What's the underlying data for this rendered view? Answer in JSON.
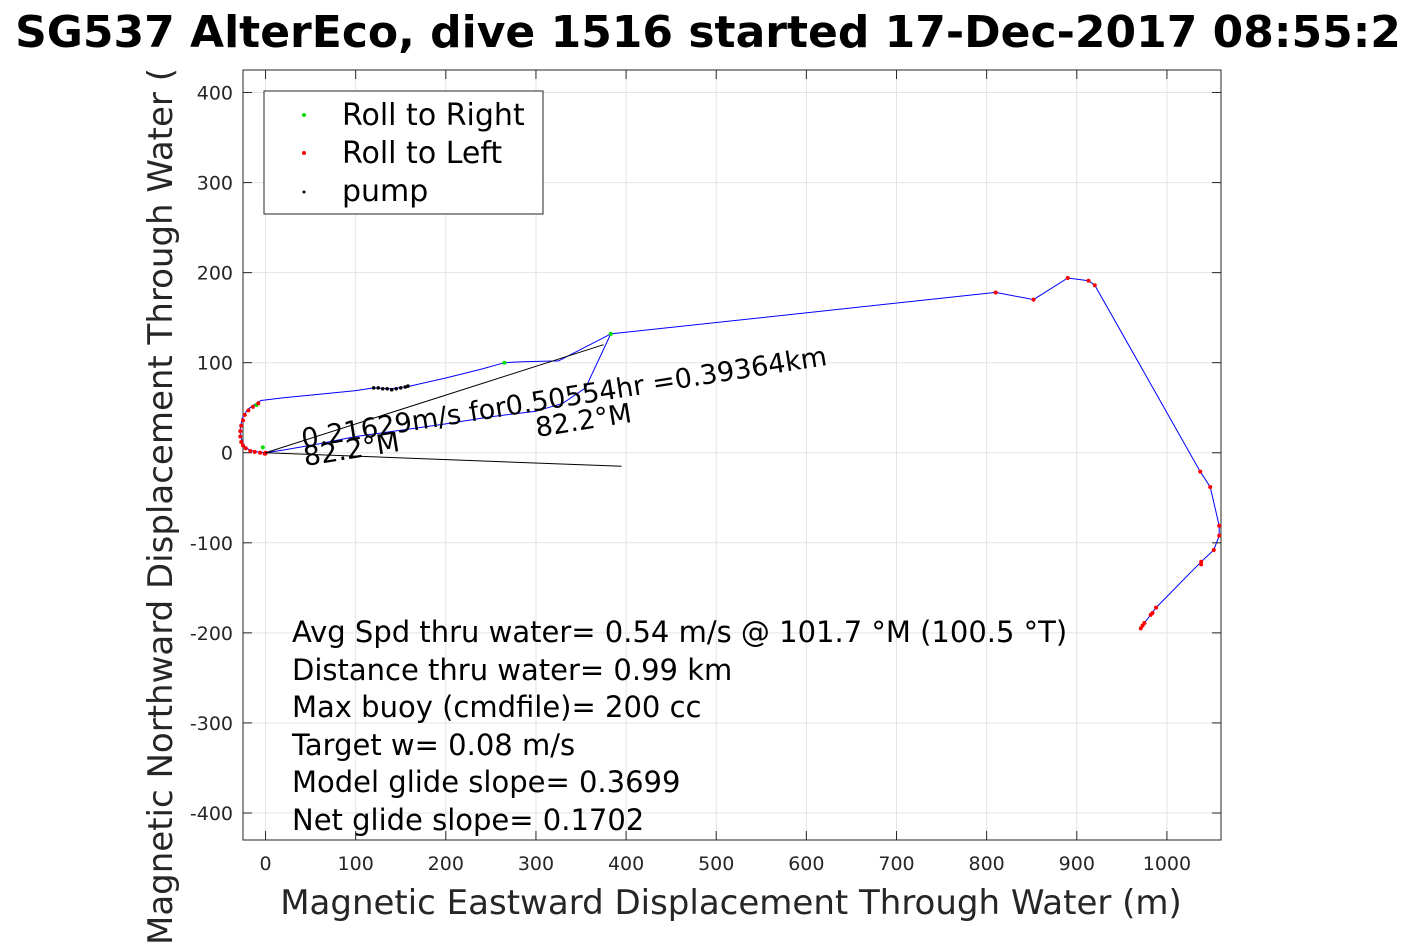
{
  "chart_data": {
    "type": "scatter",
    "title": "SG537 AlterEco, dive 1516 started 17-Dec-2017 08:55:2",
    "xlabel": "Magnetic Eastward Displacement Through Water (m)",
    "ylabel": "Magnetic Northward Displacement Through Water (",
    "xlim": [
      -25,
      1060
    ],
    "ylim": [
      -430,
      425
    ],
    "xticks": [
      0,
      100,
      200,
      300,
      400,
      500,
      600,
      700,
      800,
      900,
      1000
    ],
    "yticks": [
      -400,
      -300,
      -200,
      -100,
      0,
      100,
      200,
      300,
      400
    ],
    "grid": true,
    "legend_position": "top-left",
    "track_color": "#0000ff",
    "series": [
      {
        "name": "Roll to Right",
        "color": "#00dd00",
        "points": [
          [
            265,
            100
          ],
          [
            383,
            132
          ],
          [
            -10,
            53
          ],
          [
            -3,
            6
          ]
        ]
      },
      {
        "name": "Roll to Left",
        "color": "#ff0000",
        "points": [
          [
            -8,
            55
          ],
          [
            -14,
            51
          ],
          [
            -19,
            47
          ],
          [
            -23,
            42
          ],
          [
            -25,
            36
          ],
          [
            -27,
            30
          ],
          [
            -28,
            24
          ],
          [
            -28,
            18
          ],
          [
            -27,
            12
          ],
          [
            -25,
            8
          ],
          [
            -22,
            5
          ],
          [
            -17,
            2
          ],
          [
            -12,
            1
          ],
          [
            -6,
            0
          ],
          [
            -1,
            -1
          ],
          [
            0,
            0
          ],
          [
            0,
            -1
          ],
          [
            810,
            178
          ],
          [
            852,
            170
          ],
          [
            890,
            194
          ],
          [
            913,
            191
          ],
          [
            920,
            186
          ],
          [
            1037,
            -21
          ],
          [
            1048,
            -38
          ],
          [
            1058,
            -81
          ],
          [
            1058,
            -92
          ],
          [
            1052,
            -108
          ],
          [
            1038,
            -121
          ],
          [
            1038,
            -124
          ],
          [
            988,
            -172
          ],
          [
            984,
            -178
          ],
          [
            982,
            -180
          ],
          [
            975,
            -189
          ],
          [
            973,
            -192
          ],
          [
            971,
            -195
          ]
        ]
      },
      {
        "name": "pump",
        "color": "#000000",
        "points": [
          [
            120,
            72
          ],
          [
            125,
            72
          ],
          [
            130,
            71
          ],
          [
            135,
            71
          ],
          [
            140,
            70
          ],
          [
            145,
            71
          ],
          [
            150,
            72
          ],
          [
            155,
            73
          ],
          [
            158,
            74
          ]
        ]
      }
    ],
    "track": [
      [
        -10,
        55
      ],
      [
        -20,
        48
      ],
      [
        -26,
        38
      ],
      [
        -28,
        27
      ],
      [
        -27,
        16
      ],
      [
        -24,
        8
      ],
      [
        -18,
        3
      ],
      [
        -10,
        1
      ],
      [
        0,
        0
      ],
      [
        20,
        3
      ],
      [
        60,
        10
      ],
      [
        100,
        18
      ],
      [
        150,
        25
      ],
      [
        200,
        32
      ],
      [
        250,
        40
      ],
      [
        300,
        46
      ],
      [
        330,
        55
      ],
      [
        355,
        72
      ],
      [
        383,
        132
      ],
      [
        810,
        178
      ],
      [
        852,
        170
      ],
      [
        890,
        194
      ],
      [
        913,
        191
      ],
      [
        920,
        186
      ],
      [
        1037,
        -21
      ],
      [
        1048,
        -38
      ],
      [
        1058,
        -81
      ],
      [
        1058,
        -92
      ],
      [
        1052,
        -108
      ],
      [
        1038,
        -121
      ],
      [
        988,
        -172
      ],
      [
        975,
        -189
      ],
      [
        971,
        -195
      ]
    ],
    "track_outbound": [
      [
        -10,
        55
      ],
      [
        -5,
        58
      ],
      [
        20,
        61
      ],
      [
        60,
        65
      ],
      [
        100,
        69
      ],
      [
        120,
        72
      ],
      [
        140,
        71
      ],
      [
        160,
        74
      ],
      [
        200,
        83
      ],
      [
        240,
        93
      ],
      [
        265,
        100
      ],
      [
        285,
        101
      ],
      [
        325,
        102
      ],
      [
        383,
        132
      ]
    ],
    "current_lines": [
      [
        [
          0,
          0
        ],
        [
          375,
          120
        ]
      ],
      [
        [
          0,
          0
        ],
        [
          395,
          -15
        ]
      ]
    ],
    "annotations": {
      "current_text": "0.21629m/s for0.50554hr =0.39364km",
      "heading_near": "82.2°M",
      "heading_far": "82.2°M",
      "stats": [
        "Avg Spd thru water=  0.54 m/s @ 101.7 °M (100.5 °T)",
        "Distance thru water=  0.99 km",
        "Max buoy (cmdfile)= 200 cc",
        "Target w= 0.08 m/s",
        "Model glide slope= 0.3699",
        "Net glide slope= 0.1702"
      ]
    }
  }
}
